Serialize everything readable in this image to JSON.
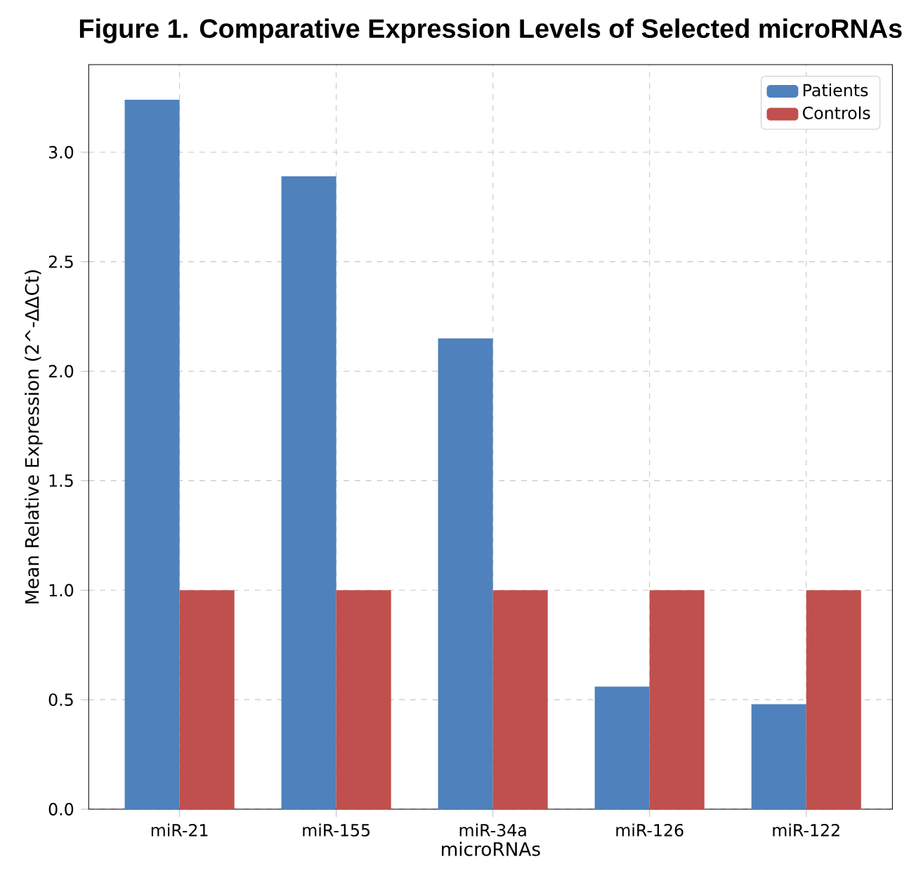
{
  "chart_data": {
    "type": "bar",
    "title": "Figure 1. Comparative Expression Levels of Selected microRNAs",
    "xlabel": "microRNAs",
    "ylabel": "Mean Relative Expression (2^-ΔΔCt)",
    "categories": [
      "miR-21",
      "miR-155",
      "miR-34a",
      "miR-126",
      "miR-122"
    ],
    "series": [
      {
        "name": "Patients",
        "color": "#4f81bd",
        "values": [
          3.24,
          2.89,
          2.15,
          0.56,
          0.48
        ]
      },
      {
        "name": "Controls",
        "color": "#c0504d",
        "values": [
          1.0,
          1.0,
          1.0,
          1.0,
          1.0
        ]
      }
    ],
    "ylim": [
      0,
      3.4
    ],
    "yticks": [
      {
        "value": 0,
        "label": "0.0"
      },
      {
        "value": 0.5,
        "label": "0.5"
      },
      {
        "value": 1,
        "label": "1.0"
      },
      {
        "value": 1.5,
        "label": "1.5"
      },
      {
        "value": 2,
        "label": "2.0"
      },
      {
        "value": 2.5,
        "label": "2.5"
      },
      {
        "value": 3,
        "label": "3.0"
      }
    ],
    "grid": true,
    "legend": "top right"
  }
}
